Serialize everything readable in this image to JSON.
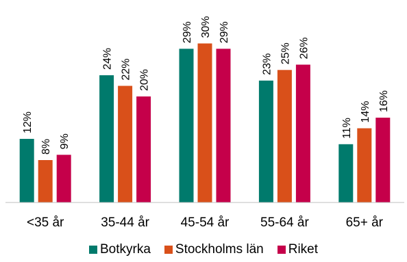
{
  "chart_data": {
    "type": "bar",
    "categories": [
      "<35 år",
      "35-44 år",
      "45-54 år",
      "55-64 år",
      "65+ år"
    ],
    "series": [
      {
        "name": "Botkyrka",
        "color": "#007a6c",
        "values": [
          12,
          24,
          29,
          23,
          11
        ]
      },
      {
        "name": "Stockholms län",
        "color": "#d9501a",
        "values": [
          8,
          22,
          30,
          25,
          14
        ]
      },
      {
        "name": "Riket",
        "color": "#c5004a",
        "values": [
          9,
          20,
          29,
          26,
          16
        ]
      }
    ],
    "data_label_suffix": "%",
    "ylim": [
      0,
      31
    ],
    "grid": false,
    "legend_position": "bottom"
  }
}
